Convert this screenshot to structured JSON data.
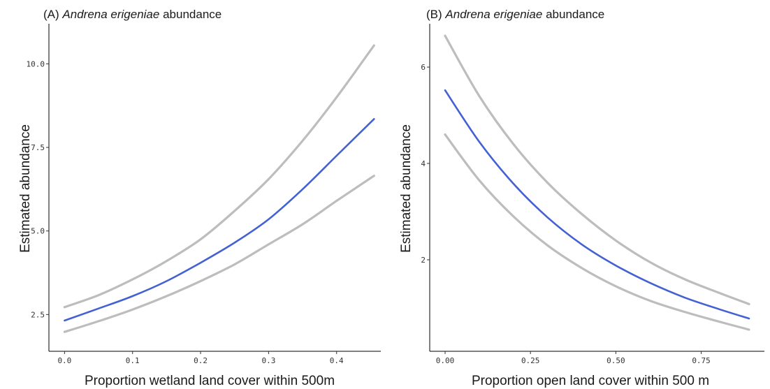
{
  "colors": {
    "fit": "#4461d4",
    "ci": "#bdbdbd",
    "axis": "#000000"
  },
  "chart_data": [
    {
      "type": "line",
      "panel_label": "(A)",
      "title_species": "Andrena erigeniae",
      "title_suffix": "abundance",
      "xlabel": "Proportion wetland land cover within 500m",
      "ylabel": "Estimated abundance",
      "xlim": [
        -0.023,
        0.465
      ],
      "ylim": [
        1.4,
        11.2
      ],
      "x_ticks": [
        0.0,
        0.1,
        0.2,
        0.3,
        0.4
      ],
      "x_tick_labels": [
        "0.0",
        "0.1",
        "0.2",
        "0.3",
        "0.4"
      ],
      "y_ticks": [
        2.5,
        5.0,
        7.5,
        10.0
      ],
      "y_tick_labels": [
        "2.5",
        "5.0",
        "7.5",
        "10.0"
      ],
      "grid": false,
      "series": [
        {
          "role": "upper_ci",
          "x": [
            0.0,
            0.05,
            0.1,
            0.15,
            0.2,
            0.25,
            0.3,
            0.35,
            0.4,
            0.455
          ],
          "y": [
            2.72,
            3.08,
            3.55,
            4.1,
            4.75,
            5.6,
            6.55,
            7.7,
            9.0,
            10.55
          ]
        },
        {
          "role": "fit",
          "x": [
            0.0,
            0.05,
            0.1,
            0.15,
            0.2,
            0.25,
            0.3,
            0.35,
            0.4,
            0.455
          ],
          "y": [
            2.32,
            2.68,
            3.05,
            3.5,
            4.05,
            4.65,
            5.35,
            6.25,
            7.25,
            8.35
          ]
        },
        {
          "role": "lower_ci",
          "x": [
            0.0,
            0.05,
            0.1,
            0.15,
            0.2,
            0.25,
            0.3,
            0.35,
            0.4,
            0.455
          ],
          "y": [
            1.98,
            2.3,
            2.65,
            3.05,
            3.5,
            4.0,
            4.6,
            5.2,
            5.9,
            6.65
          ]
        }
      ]
    },
    {
      "type": "line",
      "panel_label": "(B)",
      "title_species": "Andrena erigeniae",
      "title_suffix": "abundance",
      "xlabel": "Proportion open land cover within 500 m",
      "ylabel": "Estimated abundance",
      "xlim": [
        -0.045,
        0.935
      ],
      "ylim": [
        0.1,
        6.9
      ],
      "x_ticks": [
        0.0,
        0.25,
        0.5,
        0.75
      ],
      "x_tick_labels": [
        "0.00",
        "0.25",
        "0.50",
        "0.75"
      ],
      "y_ticks": [
        2,
        4,
        6
      ],
      "y_tick_labels": [
        "2",
        "4",
        "6"
      ],
      "grid": false,
      "series": [
        {
          "role": "upper_ci",
          "x": [
            0.0,
            0.1,
            0.2,
            0.3,
            0.4,
            0.5,
            0.6,
            0.7,
            0.8,
            0.89
          ],
          "y": [
            6.65,
            5.4,
            4.4,
            3.6,
            2.95,
            2.4,
            1.95,
            1.6,
            1.32,
            1.08
          ]
        },
        {
          "role": "fit",
          "x": [
            0.0,
            0.1,
            0.2,
            0.3,
            0.4,
            0.5,
            0.6,
            0.7,
            0.8,
            0.89
          ],
          "y": [
            5.52,
            4.45,
            3.58,
            2.88,
            2.32,
            1.88,
            1.52,
            1.22,
            0.98,
            0.78
          ]
        },
        {
          "role": "lower_ci",
          "x": [
            0.0,
            0.1,
            0.2,
            0.3,
            0.4,
            0.5,
            0.6,
            0.7,
            0.8,
            0.89
          ],
          "y": [
            4.6,
            3.65,
            2.9,
            2.3,
            1.83,
            1.45,
            1.15,
            0.92,
            0.72,
            0.55
          ]
        }
      ]
    }
  ]
}
